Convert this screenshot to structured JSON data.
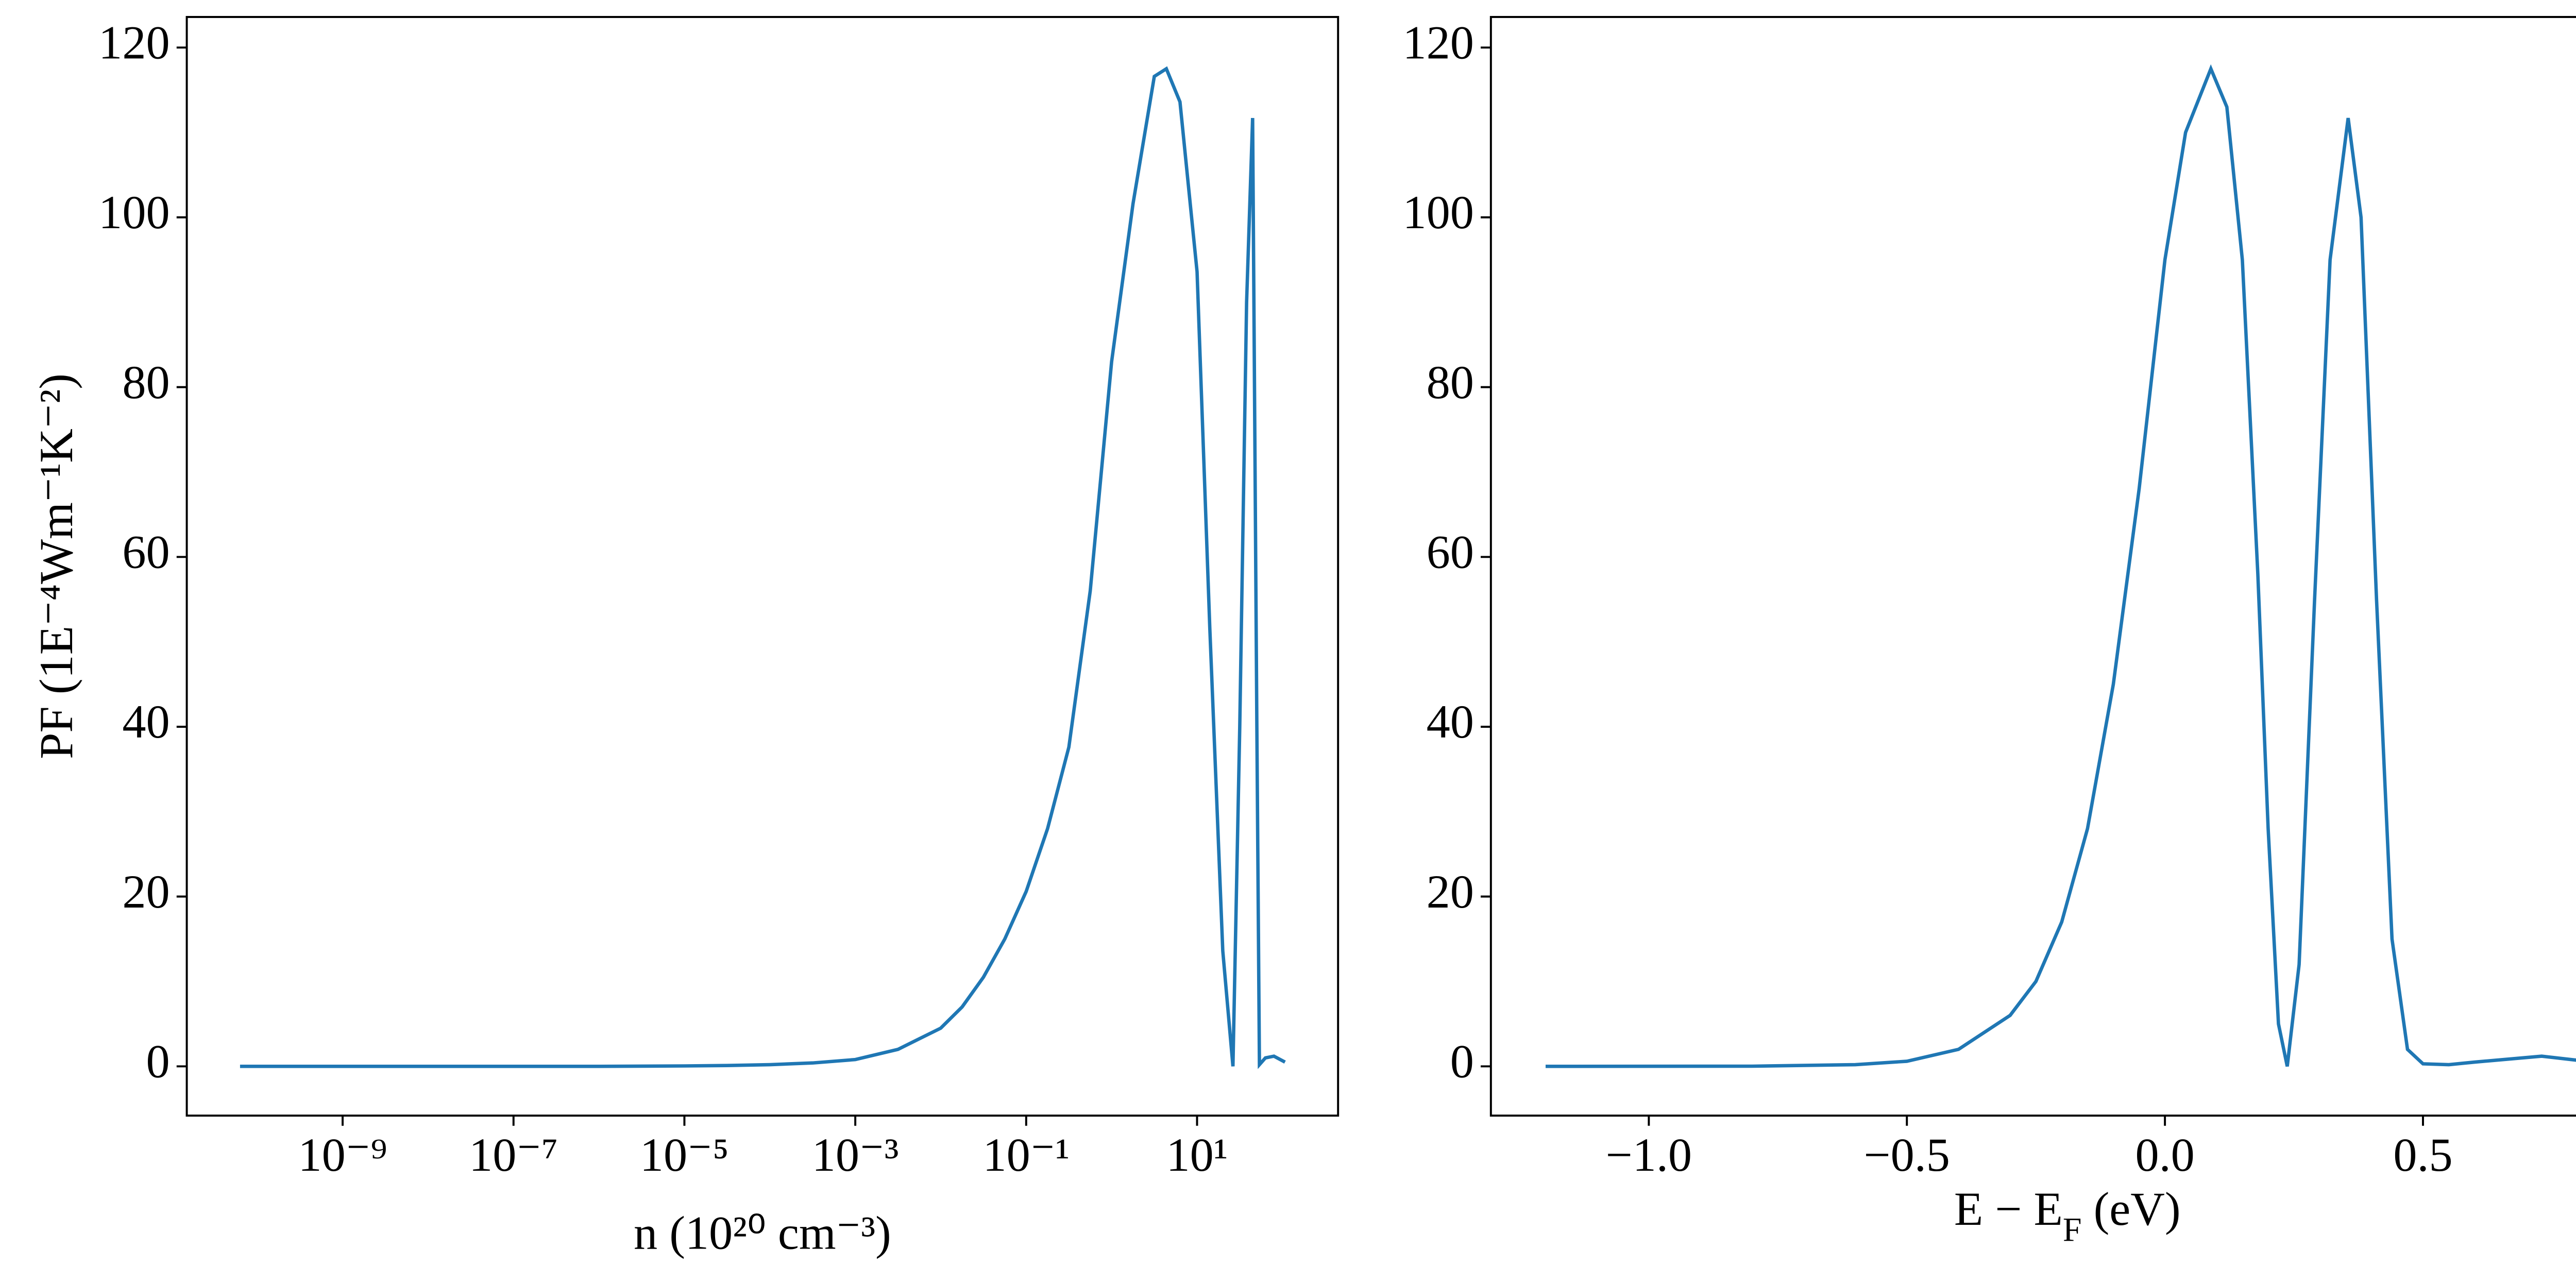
{
  "chart_data": [
    {
      "type": "line",
      "xscale": "log",
      "color": "#1f77b4",
      "xlabel": "n (10²⁰ cm⁻³)",
      "ylabel": "PF (1E⁻⁴Wm⁻¹K⁻²)",
      "x": [
        6.3e-11,
        1e-09,
        1e-08,
        1e-07,
        1e-06,
        1e-05,
        3.16e-05,
        0.0001,
        0.000316,
        0.001,
        0.00316,
        0.01,
        0.0178,
        0.0316,
        0.0562,
        0.1,
        0.178,
        0.316,
        0.562,
        1,
        1.78,
        3.16,
        4.37,
        6.31,
        10,
        14.1,
        20,
        26.3,
        31.6,
        38,
        44.7,
        50.1,
        53.7,
        63.1,
        79.4,
        107
      ],
      "values": [
        0,
        0,
        0,
        0,
        0,
        0.05,
        0.1,
        0.2,
        0.4,
        0.8,
        2,
        4.5,
        7,
        10.5,
        15,
        20.6,
        28,
        37.6,
        56,
        83,
        101.6,
        116.6,
        117.5,
        113.6,
        93.6,
        51.6,
        13.6,
        0,
        40,
        90,
        111.7,
        40,
        0.2,
        1.0,
        1.2,
        0.5
      ],
      "xlim": [
        1.5e-11,
        447
      ],
      "xticks": [
        {
          "value": 1e-09,
          "label": "10⁻⁹"
        },
        {
          "value": 1e-07,
          "label": "10⁻⁷"
        },
        {
          "value": 1e-05,
          "label": "10⁻⁵"
        },
        {
          "value": 0.001,
          "label": "10⁻³"
        },
        {
          "value": 0.1,
          "label": "10⁻¹"
        },
        {
          "value": 10,
          "label": "10¹"
        }
      ],
      "ylim": [
        -5.8,
        123.6
      ],
      "yticks": [
        0,
        20,
        40,
        60,
        80,
        100,
        120
      ]
    },
    {
      "type": "line",
      "xscale": "linear",
      "color": "#1f77b4",
      "xlabel": [
        "E − E",
        "F",
        " (eV)"
      ],
      "x": [
        -1.2,
        -0.8,
        -0.6,
        -0.5,
        -0.4,
        -0.3,
        -0.25,
        -0.2,
        -0.15,
        -0.1,
        -0.05,
        0,
        0.04,
        0.089,
        0.12,
        0.15,
        0.18,
        0.2,
        0.22,
        0.237,
        0.26,
        0.29,
        0.32,
        0.355,
        0.38,
        0.41,
        0.44,
        0.47,
        0.5,
        0.55,
        0.6,
        0.73,
        0.83
      ],
      "values": [
        0,
        0.02,
        0.2,
        0.6,
        2,
        6,
        10,
        17,
        28,
        45,
        68,
        95,
        110,
        117.5,
        113,
        95,
        58,
        28,
        5,
        0,
        12,
        55,
        95,
        111.7,
        100,
        55,
        15,
        2,
        0.3,
        0.2,
        0.5,
        1.2,
        0.5
      ],
      "xlim": [
        -1.306,
        0.928
      ],
      "xticks": [
        {
          "value": -1,
          "label": "−1.0"
        },
        {
          "value": -0.5,
          "label": "−0.5"
        },
        {
          "value": 0,
          "label": "0.0"
        },
        0.5
      ],
      "ylim": [
        -5.8,
        123.6
      ],
      "yticks": [
        0,
        20,
        40,
        60,
        80,
        100,
        120
      ]
    }
  ]
}
